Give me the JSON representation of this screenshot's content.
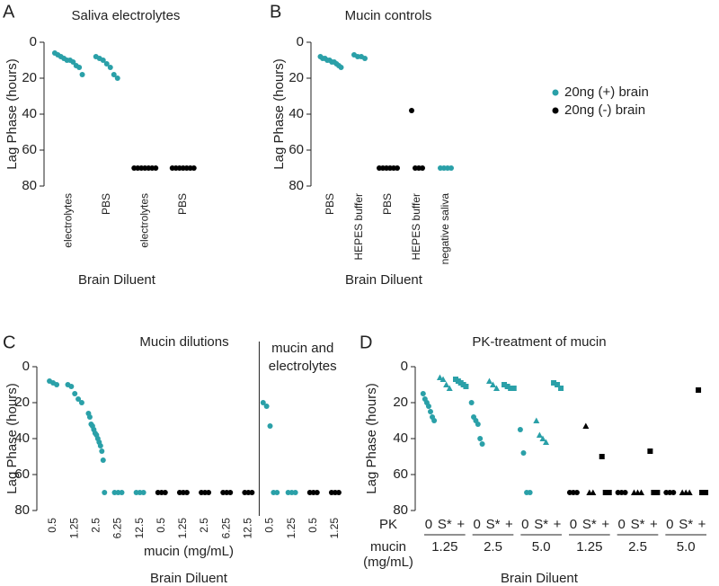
{
  "chart_data": [
    {
      "type": "strip",
      "panel": "A",
      "title": "Saliva electrolytes",
      "ylabel": "Lag Phase (hours)",
      "xlabel": "Brain Diluent",
      "categories": [
        "electrolytes",
        "PBS",
        "electrolytes",
        "PBS"
      ],
      "ylim": [
        0,
        80
      ],
      "y_inverted": true,
      "yticks": [
        0,
        20,
        40,
        60,
        80
      ],
      "series": [
        {
          "color": "#2aa0a8",
          "marker": "circle",
          "values": [
            [
              6,
              7,
              8,
              9,
              10,
              10,
              11,
              13,
              14,
              18
            ],
            [
              8,
              9,
              10,
              12,
              14,
              18,
              20
            ],
            null,
            null
          ]
        },
        {
          "color": "#000000",
          "marker": "circle",
          "values": [
            null,
            null,
            [
              70,
              70,
              70,
              70,
              70,
              70,
              70
            ],
            [
              70,
              70,
              70,
              70,
              70,
              70,
              70
            ]
          ]
        }
      ]
    },
    {
      "type": "strip",
      "panel": "B",
      "title": "Mucin controls",
      "ylabel": "Lag Phase (hours)",
      "xlabel": "Brain Diluent",
      "categories": [
        "PBS",
        "HEPES buffer",
        "PBS",
        "HEPES buffer",
        "negative saliva"
      ],
      "ylim": [
        0,
        80
      ],
      "y_inverted": true,
      "yticks": [
        0,
        20,
        40,
        60,
        80
      ],
      "series": [
        {
          "name": "20ng (+) brain",
          "color": "#2aa0a8",
          "marker": "circle",
          "values": [
            [
              8,
              9,
              9,
              10,
              10,
              11,
              11,
              12,
              13,
              14
            ],
            [
              7,
              8,
              8,
              9
            ],
            null,
            null,
            [
              70,
              70,
              70,
              70
            ]
          ]
        },
        {
          "name": "20ng (-) brain",
          "color": "#000000",
          "marker": "circle",
          "values": [
            null,
            null,
            [
              70,
              70,
              70,
              70,
              70,
              70
            ],
            [
              38,
              70,
              70,
              70
            ],
            null
          ]
        }
      ]
    },
    {
      "type": "strip",
      "panel": "C",
      "title": "Mucin dilutions",
      "ylabel": "Lag Phase (hours)",
      "xlabel": "mucin (mg/mL)",
      "xlabel2": "Brain Diluent",
      "annotation": [
        "mucin and",
        "electrolytes"
      ],
      "divider_before": 10,
      "categories": [
        "0.5",
        "1.25",
        "2.5",
        "6.25",
        "12.5",
        "0.5",
        "1.25",
        "2.5",
        "6.25",
        "12.5",
        "0.5",
        "1.25",
        "0.5",
        "1.25"
      ],
      "ylim": [
        0,
        80
      ],
      "y_inverted": true,
      "yticks": [
        0,
        20,
        40,
        60,
        80
      ],
      "series": [
        {
          "color": "#2aa0a8",
          "marker": "circle",
          "values": [
            [
              8,
              9,
              10
            ],
            [
              10,
              11,
              15,
              18,
              20
            ],
            [
              26,
              28,
              32,
              33,
              35,
              37,
              38,
              40,
              42,
              44,
              47,
              52,
              70
            ],
            [
              70,
              70,
              70
            ],
            [
              70,
              70,
              70
            ],
            null,
            null,
            null,
            null,
            null,
            [
              20,
              22,
              33,
              70,
              70
            ],
            [
              70,
              70,
              70
            ],
            null,
            null
          ]
        },
        {
          "color": "#000000",
          "marker": "circle",
          "values": [
            null,
            null,
            null,
            null,
            null,
            [
              70,
              70,
              70
            ],
            [
              70,
              70,
              70
            ],
            [
              70,
              70,
              70
            ],
            [
              70,
              70,
              70
            ],
            [
              70,
              70,
              70
            ],
            null,
            null,
            [
              70,
              70,
              70
            ],
            [
              70,
              70,
              70
            ]
          ]
        }
      ]
    },
    {
      "type": "strip",
      "panel": "D",
      "title": "PK-treatment of mucin",
      "ylabel": "Lag Phase (hours)",
      "xlabel": "Brain Diluent",
      "row_label": "PK",
      "group_label": [
        "mucin",
        "(mg/mL)"
      ],
      "groups": [
        {
          "label": "1.25",
          "size": 3
        },
        {
          "label": "2.5",
          "size": 3
        },
        {
          "label": "5.0",
          "size": 3
        },
        {
          "label": "1.25",
          "size": 3
        },
        {
          "label": "2.5",
          "size": 3
        },
        {
          "label": "5.0",
          "size": 3
        }
      ],
      "categories": [
        "0",
        "S*",
        "+",
        "0",
        "S*",
        "+",
        "0",
        "S*",
        "+",
        "0",
        "S*",
        "+",
        "0",
        "S*",
        "+",
        "0",
        "S*",
        "+"
      ],
      "ylim": [
        0,
        80
      ],
      "y_inverted": true,
      "yticks": [
        0,
        20,
        40,
        60,
        80
      ],
      "series": [
        {
          "color": "#2aa0a8",
          "marker": "circle",
          "values": [
            [
              15,
              18,
              20,
              22,
              25,
              28,
              30
            ],
            null,
            null,
            [
              20,
              28,
              30,
              32,
              40,
              43
            ],
            null,
            null,
            [
              35,
              48,
              70,
              70
            ],
            null,
            null,
            null,
            null,
            null,
            null,
            null,
            null,
            null,
            null,
            null
          ]
        },
        {
          "color": "#2aa0a8",
          "marker": "triangle",
          "values": [
            null,
            [
              6,
              7,
              10,
              12
            ],
            null,
            null,
            [
              8,
              10,
              12
            ],
            null,
            null,
            [
              30,
              38,
              40,
              42
            ],
            null,
            null,
            null,
            null,
            null,
            null,
            null,
            null,
            null,
            null
          ]
        },
        {
          "color": "#2aa0a8",
          "marker": "square",
          "values": [
            null,
            null,
            [
              7,
              8,
              9,
              10,
              11
            ],
            null,
            null,
            [
              10,
              11,
              12,
              12
            ],
            null,
            null,
            [
              9,
              10,
              12
            ],
            null,
            null,
            null,
            null,
            null,
            null,
            null,
            null,
            null
          ]
        },
        {
          "color": "#000000",
          "marker": "circle",
          "values": [
            null,
            null,
            null,
            null,
            null,
            null,
            null,
            null,
            null,
            [
              70,
              70,
              70
            ],
            null,
            null,
            [
              70,
              70,
              70
            ],
            null,
            null,
            [
              70,
              70,
              70
            ],
            null,
            null
          ]
        },
        {
          "color": "#000000",
          "marker": "triangle",
          "values": [
            null,
            null,
            null,
            null,
            null,
            null,
            null,
            null,
            null,
            null,
            [
              33,
              70,
              70
            ],
            null,
            null,
            [
              70,
              70,
              70
            ],
            null,
            null,
            [
              70,
              70,
              70
            ],
            null
          ]
        },
        {
          "color": "#000000",
          "marker": "square",
          "values": [
            null,
            null,
            null,
            null,
            null,
            null,
            null,
            null,
            null,
            null,
            null,
            [
              50,
              70,
              70
            ],
            null,
            null,
            [
              47,
              70,
              70
            ],
            null,
            null,
            [
              13,
              70,
              70
            ]
          ]
        }
      ]
    }
  ]
}
